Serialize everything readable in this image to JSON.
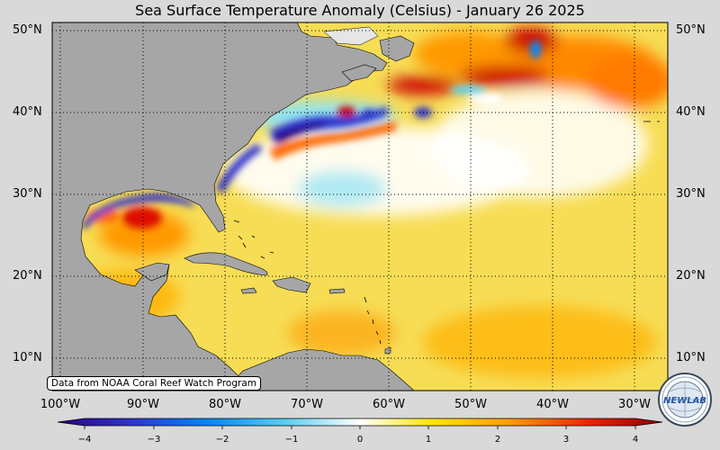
{
  "title": "Sea Surface Temperature Anomaly (Celsius) - January 26 2025",
  "credit": "Data from NOAA Coral Reef Watch Program",
  "logo_text": "NEWLAB",
  "map": {
    "lon_range": [
      -101,
      -25
    ],
    "lat_range": [
      6,
      51
    ],
    "lat_labels": [
      "50°N",
      "40°N",
      "30°N",
      "20°N",
      "10°N"
    ],
    "lon_labels": [
      "100°W",
      "90°W",
      "80°W",
      "70°W",
      "60°W",
      "50°W",
      "40°W",
      "30°W"
    ],
    "land_color": "#a6a6a6",
    "ocean_base_color": "#f7dd55"
  },
  "colorbar": {
    "min": -4.5,
    "max": 4.5,
    "ticks": [
      "−4",
      "−3",
      "−2",
      "−1",
      "0",
      "1",
      "2",
      "3",
      "4"
    ],
    "colors": [
      "#2b0080",
      "#2f33cc",
      "#0088ff",
      "#5ecff0",
      "#ffffff",
      "#ffe600",
      "#ff9900",
      "#ee2200",
      "#8b0000"
    ]
  }
}
